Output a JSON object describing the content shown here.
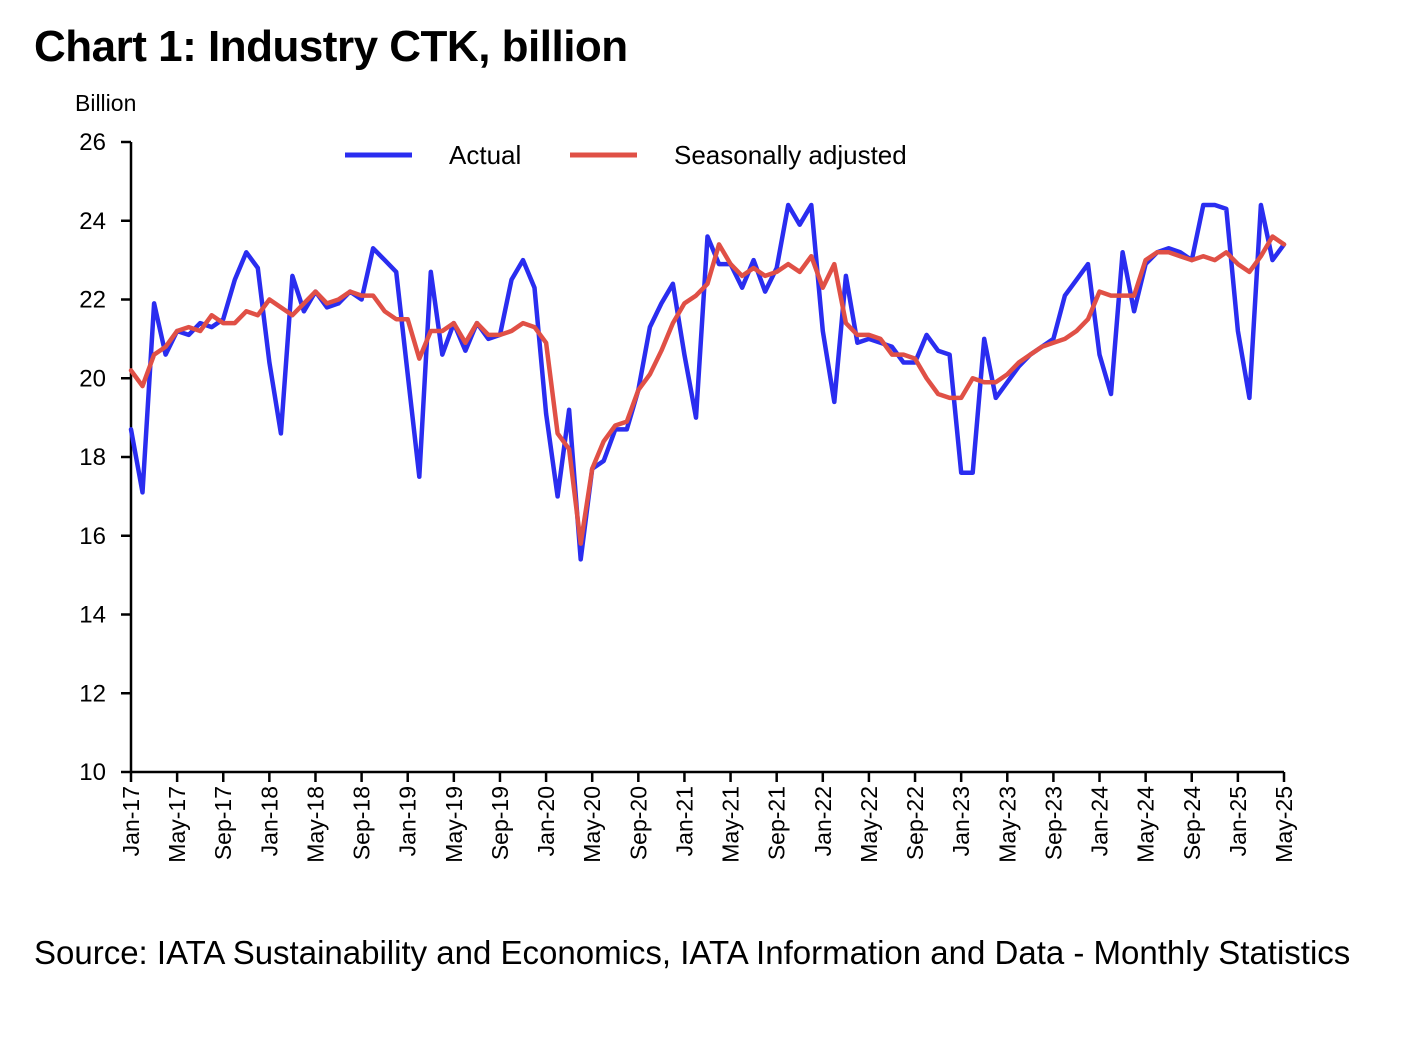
{
  "title": "Chart 1: Industry CTK, billion",
  "source": "Source: IATA Sustainability and Economics, IATA Information and Data - Monthly Statistics",
  "chart_data": {
    "type": "line",
    "title": "Chart 1: Industry CTK, billion",
    "ylabel": "Billion",
    "xlabel": "",
    "ylim": [
      10,
      26
    ],
    "yticks": [
      10,
      12,
      14,
      16,
      18,
      20,
      22,
      24,
      26
    ],
    "legend_position": "top",
    "grid": false,
    "x_tick_labels": [
      "Jan-17",
      "May-17",
      "Sep-17",
      "Jan-18",
      "May-18",
      "Sep-18",
      "Jan-19",
      "May-19",
      "Sep-19",
      "Jan-20",
      "May-20",
      "Sep-20",
      "Jan-21",
      "May-21",
      "Sep-21",
      "Jan-22",
      "May-22",
      "Sep-22",
      "Jan-23",
      "May-23",
      "Sep-23",
      "Jan-24",
      "May-24",
      "Sep-24",
      "Jan-25",
      "May-25"
    ],
    "x_start": "Jan-17",
    "x_end": "May-25",
    "series": [
      {
        "name": "Actual",
        "color": "#2a2df0",
        "values": [
          18.7,
          17.1,
          21.9,
          20.6,
          21.2,
          21.1,
          21.4,
          21.3,
          21.5,
          22.5,
          23.2,
          22.8,
          20.4,
          18.6,
          22.6,
          21.7,
          22.2,
          21.8,
          21.9,
          22.2,
          22.0,
          23.3,
          23.0,
          22.7,
          20.1,
          17.5,
          22.7,
          20.6,
          21.4,
          20.7,
          21.4,
          21.0,
          21.1,
          22.5,
          23.0,
          22.3,
          19.1,
          17.0,
          19.2,
          15.4,
          17.7,
          17.9,
          18.7,
          18.7,
          19.7,
          21.3,
          21.9,
          22.4,
          20.6,
          19.0,
          23.6,
          22.9,
          22.9,
          22.3,
          23.0,
          22.2,
          22.8,
          24.4,
          23.9,
          24.4,
          21.2,
          19.4,
          22.6,
          20.9,
          21.0,
          20.9,
          20.8,
          20.4,
          20.4,
          21.1,
          20.7,
          20.6,
          17.6,
          17.6,
          21.0,
          19.5,
          19.9,
          20.3,
          20.6,
          20.8,
          21.0,
          22.1,
          22.5,
          22.9,
          20.6,
          19.6,
          23.2,
          21.7,
          22.9,
          23.2,
          23.3,
          23.2,
          23.0,
          24.4,
          24.4,
          24.3,
          21.2,
          19.5,
          24.4,
          23.0,
          23.4
        ]
      },
      {
        "name": "Seasonally adjusted",
        "color": "#e05046",
        "values": [
          20.2,
          19.8,
          20.6,
          20.8,
          21.2,
          21.3,
          21.2,
          21.6,
          21.4,
          21.4,
          21.7,
          21.6,
          22.0,
          21.8,
          21.6,
          21.9,
          22.2,
          21.9,
          22.0,
          22.2,
          22.1,
          22.1,
          21.7,
          21.5,
          21.5,
          20.5,
          21.2,
          21.2,
          21.4,
          20.9,
          21.4,
          21.1,
          21.1,
          21.2,
          21.4,
          21.3,
          20.9,
          18.6,
          18.2,
          15.8,
          17.7,
          18.4,
          18.8,
          18.9,
          19.7,
          20.1,
          20.7,
          21.4,
          21.9,
          22.1,
          22.4,
          23.4,
          22.9,
          22.6,
          22.8,
          22.6,
          22.7,
          22.9,
          22.7,
          23.1,
          22.3,
          22.9,
          21.4,
          21.1,
          21.1,
          21.0,
          20.6,
          20.6,
          20.5,
          20.0,
          19.6,
          19.5,
          19.5,
          20.0,
          19.9,
          19.9,
          20.1,
          20.4,
          20.6,
          20.8,
          20.9,
          21.0,
          21.2,
          21.5,
          22.2,
          22.1,
          22.1,
          22.1,
          23.0,
          23.2,
          23.2,
          23.1,
          23.0,
          23.1,
          23.0,
          23.2,
          22.9,
          22.7,
          23.1,
          23.6,
          23.4
        ]
      }
    ]
  }
}
